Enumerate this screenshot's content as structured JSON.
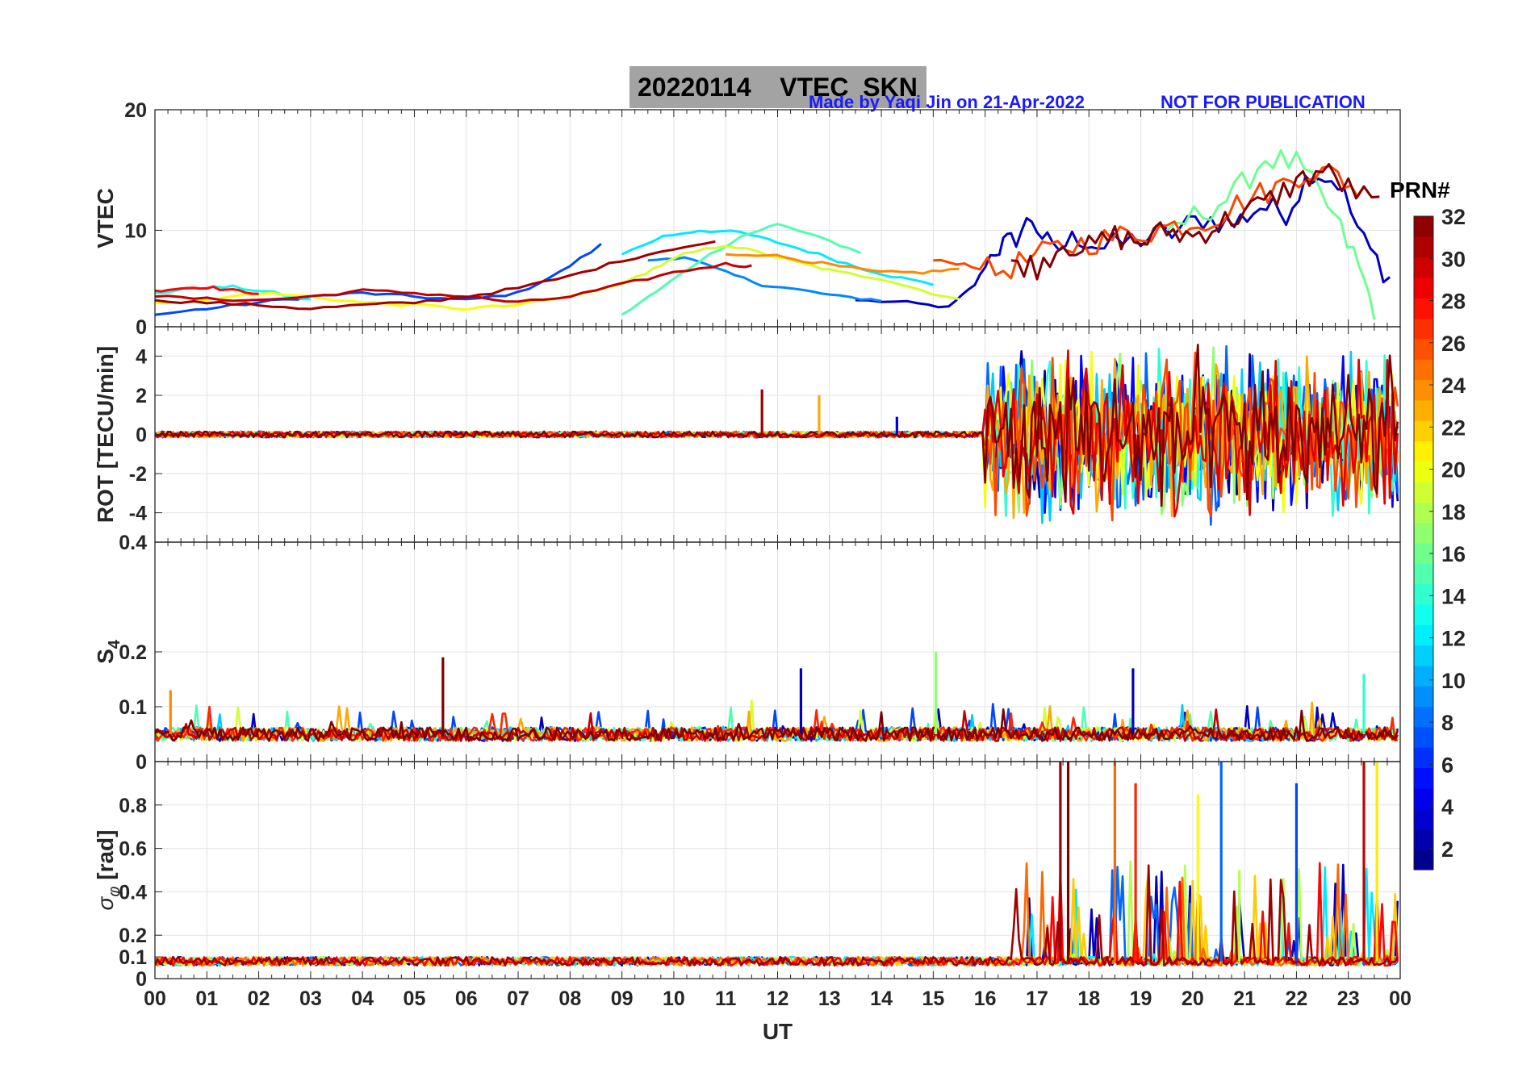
{
  "header": {
    "date": "20220114",
    "product": "VTEC",
    "station": "SKN",
    "made_by": "Made by Yaqi Jin on 21-Apr-2022",
    "notice": "NOT FOR PUBLICATION"
  },
  "colorbar": {
    "label": "PRN#",
    "ticks": [
      2,
      4,
      6,
      8,
      10,
      12,
      14,
      16,
      18,
      20,
      22,
      24,
      26,
      28,
      30,
      32
    ],
    "range": [
      1,
      32
    ],
    "colormap": "jet",
    "levels": 32
  },
  "chart_data": [
    {
      "type": "line",
      "panel": "vtec",
      "ylabel": "VTEC",
      "ylim": [
        2,
        20
      ],
      "yticks": [
        10,
        20
      ],
      "extra_tick_labels": [],
      "grid": true,
      "series": [
        {
          "prn": 3,
          "x": [
            13.5,
            14.5,
            15.3,
            15.8,
            16.2,
            16.5,
            16.9,
            17.3,
            17.8,
            18.3,
            19.0,
            19.6,
            20.2,
            20.8,
            21.3,
            21.8,
            22.3,
            22.8,
            23.3,
            23.8
          ],
          "y": [
            4.2,
            4.0,
            3.6,
            5.5,
            8.5,
            9.0,
            11.0,
            8.2,
            9.5,
            8.5,
            9.3,
            9.8,
            11.0,
            10.5,
            12.0,
            11.5,
            15.0,
            14.0,
            9.0,
            6.0
          ]
        },
        {
          "prn": 7,
          "x": [
            0.0,
            1.0,
            2.0,
            3.0,
            4.0,
            5.0,
            6.0,
            7.0,
            7.8,
            8.6
          ],
          "y": [
            3.0,
            3.5,
            4.0,
            4.5,
            4.8,
            4.5,
            4.2,
            4.8,
            6.5,
            8.8
          ]
        },
        {
          "prn": 9,
          "x": [
            9.5,
            10.2,
            11.0,
            11.7,
            12.5,
            13.2,
            14.0
          ],
          "y": [
            7.5,
            7.8,
            6.5,
            5.5,
            5.0,
            4.5,
            4.2
          ]
        },
        {
          "prn": 12,
          "x": [
            9.0,
            9.8,
            10.5,
            11.3,
            12.0,
            12.8,
            13.5,
            14.2,
            15.0
          ],
          "y": [
            8.0,
            9.5,
            10.0,
            9.8,
            9.0,
            8.0,
            7.0,
            6.2,
            5.5
          ]
        },
        {
          "prn": 13,
          "x": [
            0.0,
            0.8,
            1.5,
            2.3,
            3.0
          ],
          "y": [
            4.8,
            5.2,
            5.3,
            4.8,
            4.2
          ]
        },
        {
          "prn": 15,
          "x": [
            9.0,
            9.7,
            10.5,
            11.3,
            12.0,
            12.8,
            13.6
          ],
          "y": [
            3.0,
            5.0,
            7.5,
            9.5,
            10.5,
            9.5,
            8.0
          ]
        },
        {
          "prn": 16,
          "x": [
            19.5,
            20.2,
            20.8,
            21.4,
            22.0,
            22.6,
            23.1,
            23.5
          ],
          "y": [
            10.0,
            11.5,
            13.0,
            16.0,
            15.5,
            12.0,
            8.0,
            3.5
          ]
        },
        {
          "prn": 19,
          "x": [
            9.0,
            9.6,
            10.2,
            11.0,
            11.8,
            12.5,
            13.2,
            14.0,
            14.8,
            15.5
          ],
          "y": [
            5.5,
            6.8,
            8.0,
            8.8,
            8.0,
            7.2,
            6.5,
            6.0,
            5.0,
            4.2
          ]
        },
        {
          "prn": 20,
          "x": [
            0.0,
            1.0,
            2.0,
            3.0,
            4.0,
            5.0,
            6.0,
            7.0,
            8.0,
            9.0
          ],
          "y": [
            4.0,
            4.2,
            4.8,
            4.5,
            4.0,
            3.8,
            3.5,
            3.8,
            4.5,
            5.5
          ]
        },
        {
          "prn": 24,
          "x": [
            11.0,
            11.8,
            12.5,
            13.2,
            14.0,
            14.8,
            15.5
          ],
          "y": [
            8.0,
            8.0,
            7.5,
            7.0,
            6.5,
            6.5,
            6.8
          ]
        },
        {
          "prn": 26,
          "x": [
            15.0,
            15.6,
            16.2,
            16.8,
            17.4,
            18.0,
            18.6,
            19.2,
            19.8,
            20.4,
            21.0,
            21.6,
            22.2,
            22.8,
            23.3
          ],
          "y": [
            7.5,
            7.2,
            6.5,
            7.5,
            8.5,
            9.0,
            9.5,
            10.0,
            10.5,
            11.0,
            12.5,
            13.5,
            15.0,
            14.5,
            13.0
          ]
        },
        {
          "prn": 28,
          "x": [
            0.0,
            0.5,
            1.0,
            1.5,
            2.0
          ],
          "y": [
            5.0,
            5.2,
            5.3,
            5.0,
            4.8
          ]
        },
        {
          "prn": 30,
          "x": [
            0.0,
            1.0,
            2.0,
            3.0,
            4.0,
            5.0,
            6.0,
            7.0,
            8.0,
            9.0,
            10.0,
            11.0,
            11.5
          ],
          "y": [
            4.5,
            4.3,
            4.2,
            4.5,
            5.0,
            4.8,
            4.5,
            4.0,
            4.5,
            5.5,
            6.5,
            7.2,
            7.0
          ]
        },
        {
          "prn": 31,
          "x": [
            0.0,
            1.0,
            2.0,
            3.0,
            4.0,
            5.0,
            6.0,
            7.0,
            8.0,
            9.0,
            10.0,
            10.8
          ],
          "y": [
            4.2,
            4.0,
            3.8,
            3.5,
            3.8,
            4.0,
            4.5,
            5.2,
            6.2,
            7.5,
            8.5,
            9.0
          ]
        },
        {
          "prn": 32,
          "x": [
            16.5,
            17.0,
            17.5,
            18.0,
            18.5,
            19.0,
            19.5,
            20.0,
            20.5,
            21.0,
            21.5,
            22.0,
            22.5,
            23.0,
            23.6
          ],
          "y": [
            7.5,
            7.0,
            9.0,
            8.5,
            9.5,
            9.0,
            10.0,
            9.5,
            10.5,
            11.5,
            12.5,
            14.0,
            15.0,
            13.5,
            12.0
          ]
        }
      ]
    },
    {
      "type": "line",
      "panel": "rot",
      "ylabel": "ROT [TECU/min]",
      "ylim": [
        -5.5,
        5.5
      ],
      "yticks": [
        -4,
        -2,
        0,
        2,
        4
      ],
      "extra_tick_labels": [
        {
          "value": 5.5,
          "label": "0"
        }
      ],
      "grid": true,
      "activity": {
        "quiet_amplitude": 0.15,
        "quiet_until_hour": 16.0,
        "storm_start_hour": 16.0,
        "storm_amplitude": 3.5,
        "clip": 5.5
      },
      "spikes": [
        {
          "prn": 31,
          "x": 11.7,
          "y": 2.3
        },
        {
          "prn": 23,
          "x": 12.8,
          "y": 2.0
        },
        {
          "prn": 4,
          "x": 14.3,
          "y": 0.9
        }
      ],
      "series_prns": [
        2,
        5,
        8,
        11,
        14,
        17,
        20,
        23,
        26,
        29,
        32
      ]
    },
    {
      "type": "line",
      "panel": "s4",
      "ylabel": "S4",
      "ylim": [
        0,
        0.4
      ],
      "yticks": [
        0.1,
        0.2
      ],
      "extra_tick_labels": [
        {
          "value": 0.4,
          "label": "0.4"
        }
      ],
      "grid": true,
      "activity": {
        "base": 0.045,
        "amplitude": 0.025
      },
      "spikes": [
        {
          "prn": 32,
          "x": 5.55,
          "y": 0.19
        },
        {
          "prn": 3,
          "x": 12.45,
          "y": 0.17
        },
        {
          "prn": 17,
          "x": 15.05,
          "y": 0.2
        },
        {
          "prn": 3,
          "x": 18.85,
          "y": 0.17
        },
        {
          "prn": 14,
          "x": 23.3,
          "y": 0.16
        },
        {
          "prn": 24,
          "x": 0.3,
          "y": 0.13
        }
      ],
      "series_prns": [
        3,
        7,
        11,
        15,
        19,
        23,
        27,
        30,
        32
      ]
    },
    {
      "type": "line",
      "panel": "sigma_phi",
      "ylabel": "σφ [rad]",
      "ylim": [
        0,
        1.0
      ],
      "yticks": [
        0,
        0.1,
        0.2,
        0.4,
        0.6,
        0.8
      ],
      "extra_tick_labels": [
        {
          "value": 1.0,
          "label": "0"
        }
      ],
      "grid": true,
      "activity": {
        "base": 0.06,
        "amplitude": 0.04,
        "storm_start_hour": 16.5
      },
      "spikes": [
        {
          "prn": 31,
          "x": 17.45,
          "y": 1.0
        },
        {
          "prn": 32,
          "x": 17.6,
          "y": 1.0
        },
        {
          "prn": 25,
          "x": 18.5,
          "y": 1.0
        },
        {
          "prn": 27,
          "x": 18.9,
          "y": 0.9
        },
        {
          "prn": 20,
          "x": 20.1,
          "y": 0.85
        },
        {
          "prn": 8,
          "x": 20.55,
          "y": 1.0
        },
        {
          "prn": 18,
          "x": 20.9,
          "y": 0.5
        },
        {
          "prn": 7,
          "x": 22.0,
          "y": 0.9
        },
        {
          "prn": 30,
          "x": 23.3,
          "y": 1.0
        },
        {
          "prn": 21,
          "x": 23.55,
          "y": 1.0
        }
      ],
      "series_prns": [
        3,
        8,
        12,
        18,
        22,
        25,
        28,
        31
      ]
    }
  ],
  "x_axis": {
    "label": "UT",
    "ticks": [
      "00",
      "01",
      "02",
      "03",
      "04",
      "05",
      "06",
      "07",
      "08",
      "09",
      "10",
      "11",
      "12",
      "13",
      "14",
      "15",
      "16",
      "17",
      "18",
      "19",
      "20",
      "21",
      "22",
      "23",
      "00"
    ],
    "range": [
      0,
      24
    ]
  }
}
